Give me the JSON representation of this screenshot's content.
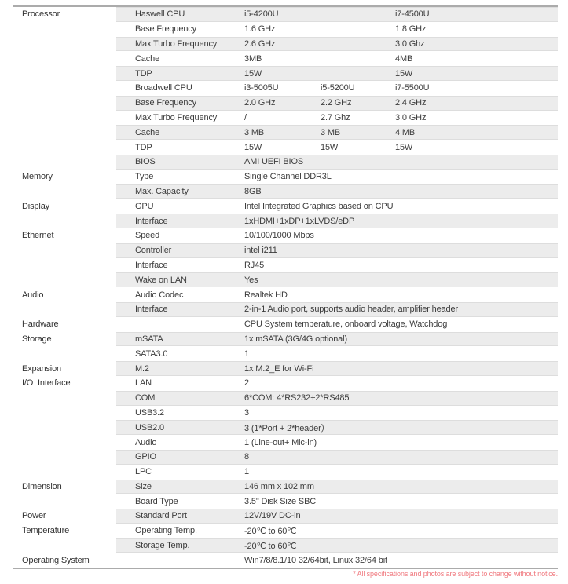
{
  "table": {
    "stripe_color": "#ececec",
    "stripe_edge_color": "#dddddd",
    "border_color": "#ababab",
    "text_color": "#3c3c3c",
    "rows": [
      {
        "category": "Processor",
        "label": "Haswell CPU",
        "values": [
          "i5-4200U",
          "",
          "i7-4500U"
        ]
      },
      {
        "category": "",
        "label": "Base Frequency",
        "values": [
          "1.6 GHz",
          "",
          "1.8 GHz"
        ]
      },
      {
        "category": "",
        "label": "Max Turbo Frequency",
        "values": [
          "2.6 GHz",
          "",
          "3.0 Ghz"
        ]
      },
      {
        "category": "",
        "label": "Cache",
        "values": [
          "3MB",
          "",
          "4MB"
        ]
      },
      {
        "category": "",
        "label": "TDP",
        "values": [
          "15W",
          "",
          "15W"
        ]
      },
      {
        "category": "",
        "label": "Broadwell CPU",
        "values": [
          "i3-5005U",
          "i5-5200U",
          "i7-5500U"
        ]
      },
      {
        "category": "",
        "label": "Base Frequency",
        "values": [
          "2.0 GHz",
          "2.2 GHz",
          "2.4 GHz"
        ]
      },
      {
        "category": "",
        "label": "Max Turbo Frequency",
        "values": [
          "/",
          "2.7 Ghz",
          "3.0 GHz"
        ]
      },
      {
        "category": "",
        "label": "Cache",
        "values": [
          "3 MB",
          "3 MB",
          "4 MB"
        ]
      },
      {
        "category": "",
        "label": "TDP",
        "values": [
          "15W",
          "15W",
          "15W"
        ]
      },
      {
        "category": "",
        "label": "BIOS",
        "values": [
          "AMI UEFI BIOS"
        ]
      },
      {
        "category": "Memory",
        "label": "Type",
        "values": [
          "Single Channel DDR3L"
        ]
      },
      {
        "category": "",
        "label": "Max. Capacity",
        "values": [
          "8GB"
        ]
      },
      {
        "category": "Display",
        "label": "GPU",
        "values": [
          "Intel Integrated Graphics based on CPU"
        ]
      },
      {
        "category": "",
        "label": "Interface",
        "values": [
          "1xHDMI+1xDP+1xLVDS/eDP"
        ]
      },
      {
        "category": "Ethernet",
        "label": "Speed",
        "values": [
          "10/100/1000 Mbps"
        ]
      },
      {
        "category": "",
        "label": "Controller",
        "values": [
          "intel i211"
        ]
      },
      {
        "category": "",
        "label": "Interface",
        "values": [
          "RJ45"
        ]
      },
      {
        "category": "",
        "label": "Wake on LAN",
        "values": [
          "Yes"
        ]
      },
      {
        "category": "Audio",
        "label": "Audio Codec",
        "values": [
          "Realtek HD"
        ]
      },
      {
        "category": "",
        "label": "Interface",
        "values": [
          "2-in-1 Audio port, supports audio header, amplifier header"
        ]
      },
      {
        "category": "Hardware",
        "label": "",
        "values": [
          "CPU System temperature, onboard voltage, Watchdog"
        ]
      },
      {
        "category": "Storage",
        "label": "mSATA",
        "values": [
          "1x mSATA (3G/4G optional)"
        ]
      },
      {
        "category": "",
        "label": "SATA3.0",
        "values": [
          "1"
        ]
      },
      {
        "category": "Expansion",
        "label": "M.2",
        "values": [
          "1x M.2_E for Wi-Fi"
        ]
      },
      {
        "category": "I/O  Interface",
        "label": "LAN",
        "values": [
          "2"
        ]
      },
      {
        "category": "",
        "label": "COM",
        "values": [
          "6*COM: 4*RS232+2*RS485"
        ]
      },
      {
        "category": "",
        "label": "USB3.2",
        "values": [
          "3"
        ]
      },
      {
        "category": "",
        "label": "USB2.0",
        "values": [
          "3 (1*Port + 2*header）"
        ]
      },
      {
        "category": "",
        "label": "Audio",
        "values": [
          "1 (Line-out+ Mic-in)"
        ]
      },
      {
        "category": "",
        "label": "GPIO",
        "values": [
          "8"
        ]
      },
      {
        "category": "",
        "label": "LPC",
        "values": [
          "1"
        ]
      },
      {
        "category": "Dimension",
        "label": "Size",
        "values": [
          "146 mm x 102 mm"
        ]
      },
      {
        "category": "",
        "label": "Board Type",
        "values": [
          "3.5\" Disk Size SBC"
        ]
      },
      {
        "category": "Power",
        "label": "Standard Port",
        "values": [
          "12V/19V DC-in"
        ]
      },
      {
        "category": "Temperature",
        "label": "Operating Temp.",
        "values": [
          "-20℃ to 60℃"
        ]
      },
      {
        "category": "",
        "label": "Storage Temp.",
        "values": [
          "-20℃ to 60℃"
        ]
      },
      {
        "category": "Operating System",
        "label": "",
        "values": [
          "Win7/8/8.1/10 32/64bit, Linux 32/64 bit"
        ]
      }
    ]
  },
  "footer": {
    "note": "* All specifications and photos are subject to change without notice.",
    "color": "#f0787e"
  }
}
